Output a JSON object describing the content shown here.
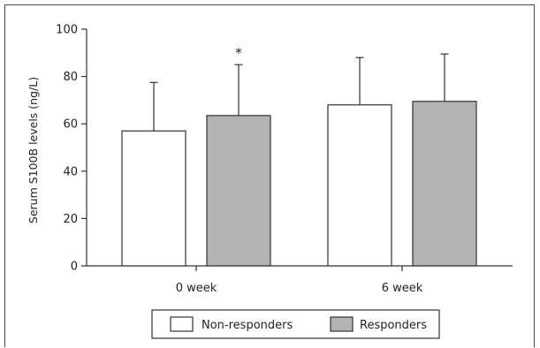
{
  "chart_data": {
    "type": "bar",
    "title": "",
    "xlabel": "",
    "ylabel": "Serum S100B levels (ng/L)",
    "ylim": [
      0,
      100
    ],
    "yticks": [
      "0",
      "20",
      "40",
      "60",
      "80",
      "100"
    ],
    "categories": [
      "0 week",
      "6 week"
    ],
    "series": [
      {
        "name": "Non-responders",
        "values": [
          57,
          68
        ],
        "error_upper": [
          20.5,
          20
        ],
        "color": "#ffffff"
      },
      {
        "name": "Responders",
        "values": [
          63.5,
          69.5
        ],
        "error_upper": [
          21.5,
          20
        ],
        "color": "#b3b3b3"
      }
    ],
    "annotations": [
      {
        "text": "*",
        "category": "0 week",
        "series": "Responders"
      }
    ],
    "legend_position": "bottom",
    "grid": false
  }
}
